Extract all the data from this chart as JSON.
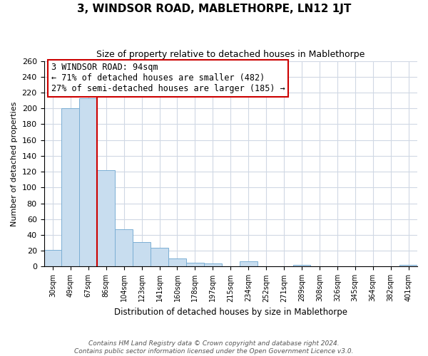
{
  "title": "3, WINDSOR ROAD, MABLETHORPE, LN12 1JT",
  "subtitle": "Size of property relative to detached houses in Mablethorpe",
  "xlabel": "Distribution of detached houses by size in Mablethorpe",
  "ylabel": "Number of detached properties",
  "bar_labels": [
    "30sqm",
    "49sqm",
    "67sqm",
    "86sqm",
    "104sqm",
    "123sqm",
    "141sqm",
    "160sqm",
    "178sqm",
    "197sqm",
    "215sqm",
    "234sqm",
    "252sqm",
    "271sqm",
    "289sqm",
    "308sqm",
    "326sqm",
    "345sqm",
    "364sqm",
    "382sqm",
    "401sqm"
  ],
  "bar_values": [
    21,
    200,
    213,
    122,
    47,
    31,
    24,
    10,
    5,
    4,
    0,
    7,
    0,
    0,
    2,
    0,
    0,
    0,
    0,
    0,
    2
  ],
  "bar_color": "#c8ddef",
  "bar_edge_color": "#7bafd4",
  "highlight_line_color": "#cc0000",
  "annotation_title": "3 WINDSOR ROAD: 94sqm",
  "annotation_line1": "← 71% of detached houses are smaller (482)",
  "annotation_line2": "27% of semi-detached houses are larger (185) →",
  "annotation_box_color": "#ffffff",
  "annotation_box_edge": "#cc0000",
  "ylim": [
    0,
    260
  ],
  "yticks": [
    0,
    20,
    40,
    60,
    80,
    100,
    120,
    140,
    160,
    180,
    200,
    220,
    240,
    260
  ],
  "footer_line1": "Contains HM Land Registry data © Crown copyright and database right 2024.",
  "footer_line2": "Contains public sector information licensed under the Open Government Licence v3.0.",
  "bg_color": "#ffffff",
  "grid_color": "#d0d8e4"
}
